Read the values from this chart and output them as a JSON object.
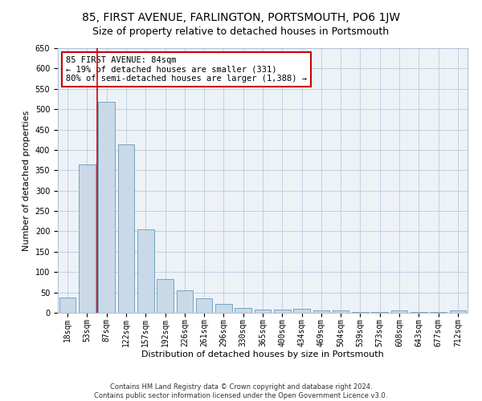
{
  "title": "85, FIRST AVENUE, FARLINGTON, PORTSMOUTH, PO6 1JW",
  "subtitle": "Size of property relative to detached houses in Portsmouth",
  "xlabel": "Distribution of detached houses by size in Portsmouth",
  "ylabel": "Number of detached properties",
  "categories": [
    "18sqm",
    "53sqm",
    "87sqm",
    "122sqm",
    "157sqm",
    "192sqm",
    "226sqm",
    "261sqm",
    "296sqm",
    "330sqm",
    "365sqm",
    "400sqm",
    "434sqm",
    "469sqm",
    "504sqm",
    "539sqm",
    "573sqm",
    "608sqm",
    "643sqm",
    "677sqm",
    "712sqm"
  ],
  "values": [
    38,
    365,
    518,
    413,
    205,
    83,
    55,
    35,
    22,
    11,
    8,
    8,
    10,
    5,
    5,
    2,
    2,
    6,
    2,
    2,
    6
  ],
  "bar_color": "#c9d9e8",
  "bar_edge_color": "#6699bb",
  "vline_color": "#cc0000",
  "annotation_text": "85 FIRST AVENUE: 84sqm\n← 19% of detached houses are smaller (331)\n80% of semi-detached houses are larger (1,388) →",
  "annotation_box_color": "#ffffff",
  "annotation_box_edge_color": "#cc0000",
  "ylim": [
    0,
    650
  ],
  "yticks": [
    0,
    50,
    100,
    150,
    200,
    250,
    300,
    350,
    400,
    450,
    500,
    550,
    600,
    650
  ],
  "footer1": "Contains HM Land Registry data © Crown copyright and database right 2024.",
  "footer2": "Contains public sector information licensed under the Open Government Licence v3.0.",
  "plot_bg_color": "#edf2f7",
  "title_fontsize": 10,
  "subtitle_fontsize": 9,
  "axis_label_fontsize": 8,
  "tick_fontsize": 7,
  "annotation_fontsize": 7.5,
  "footer_fontsize": 6
}
